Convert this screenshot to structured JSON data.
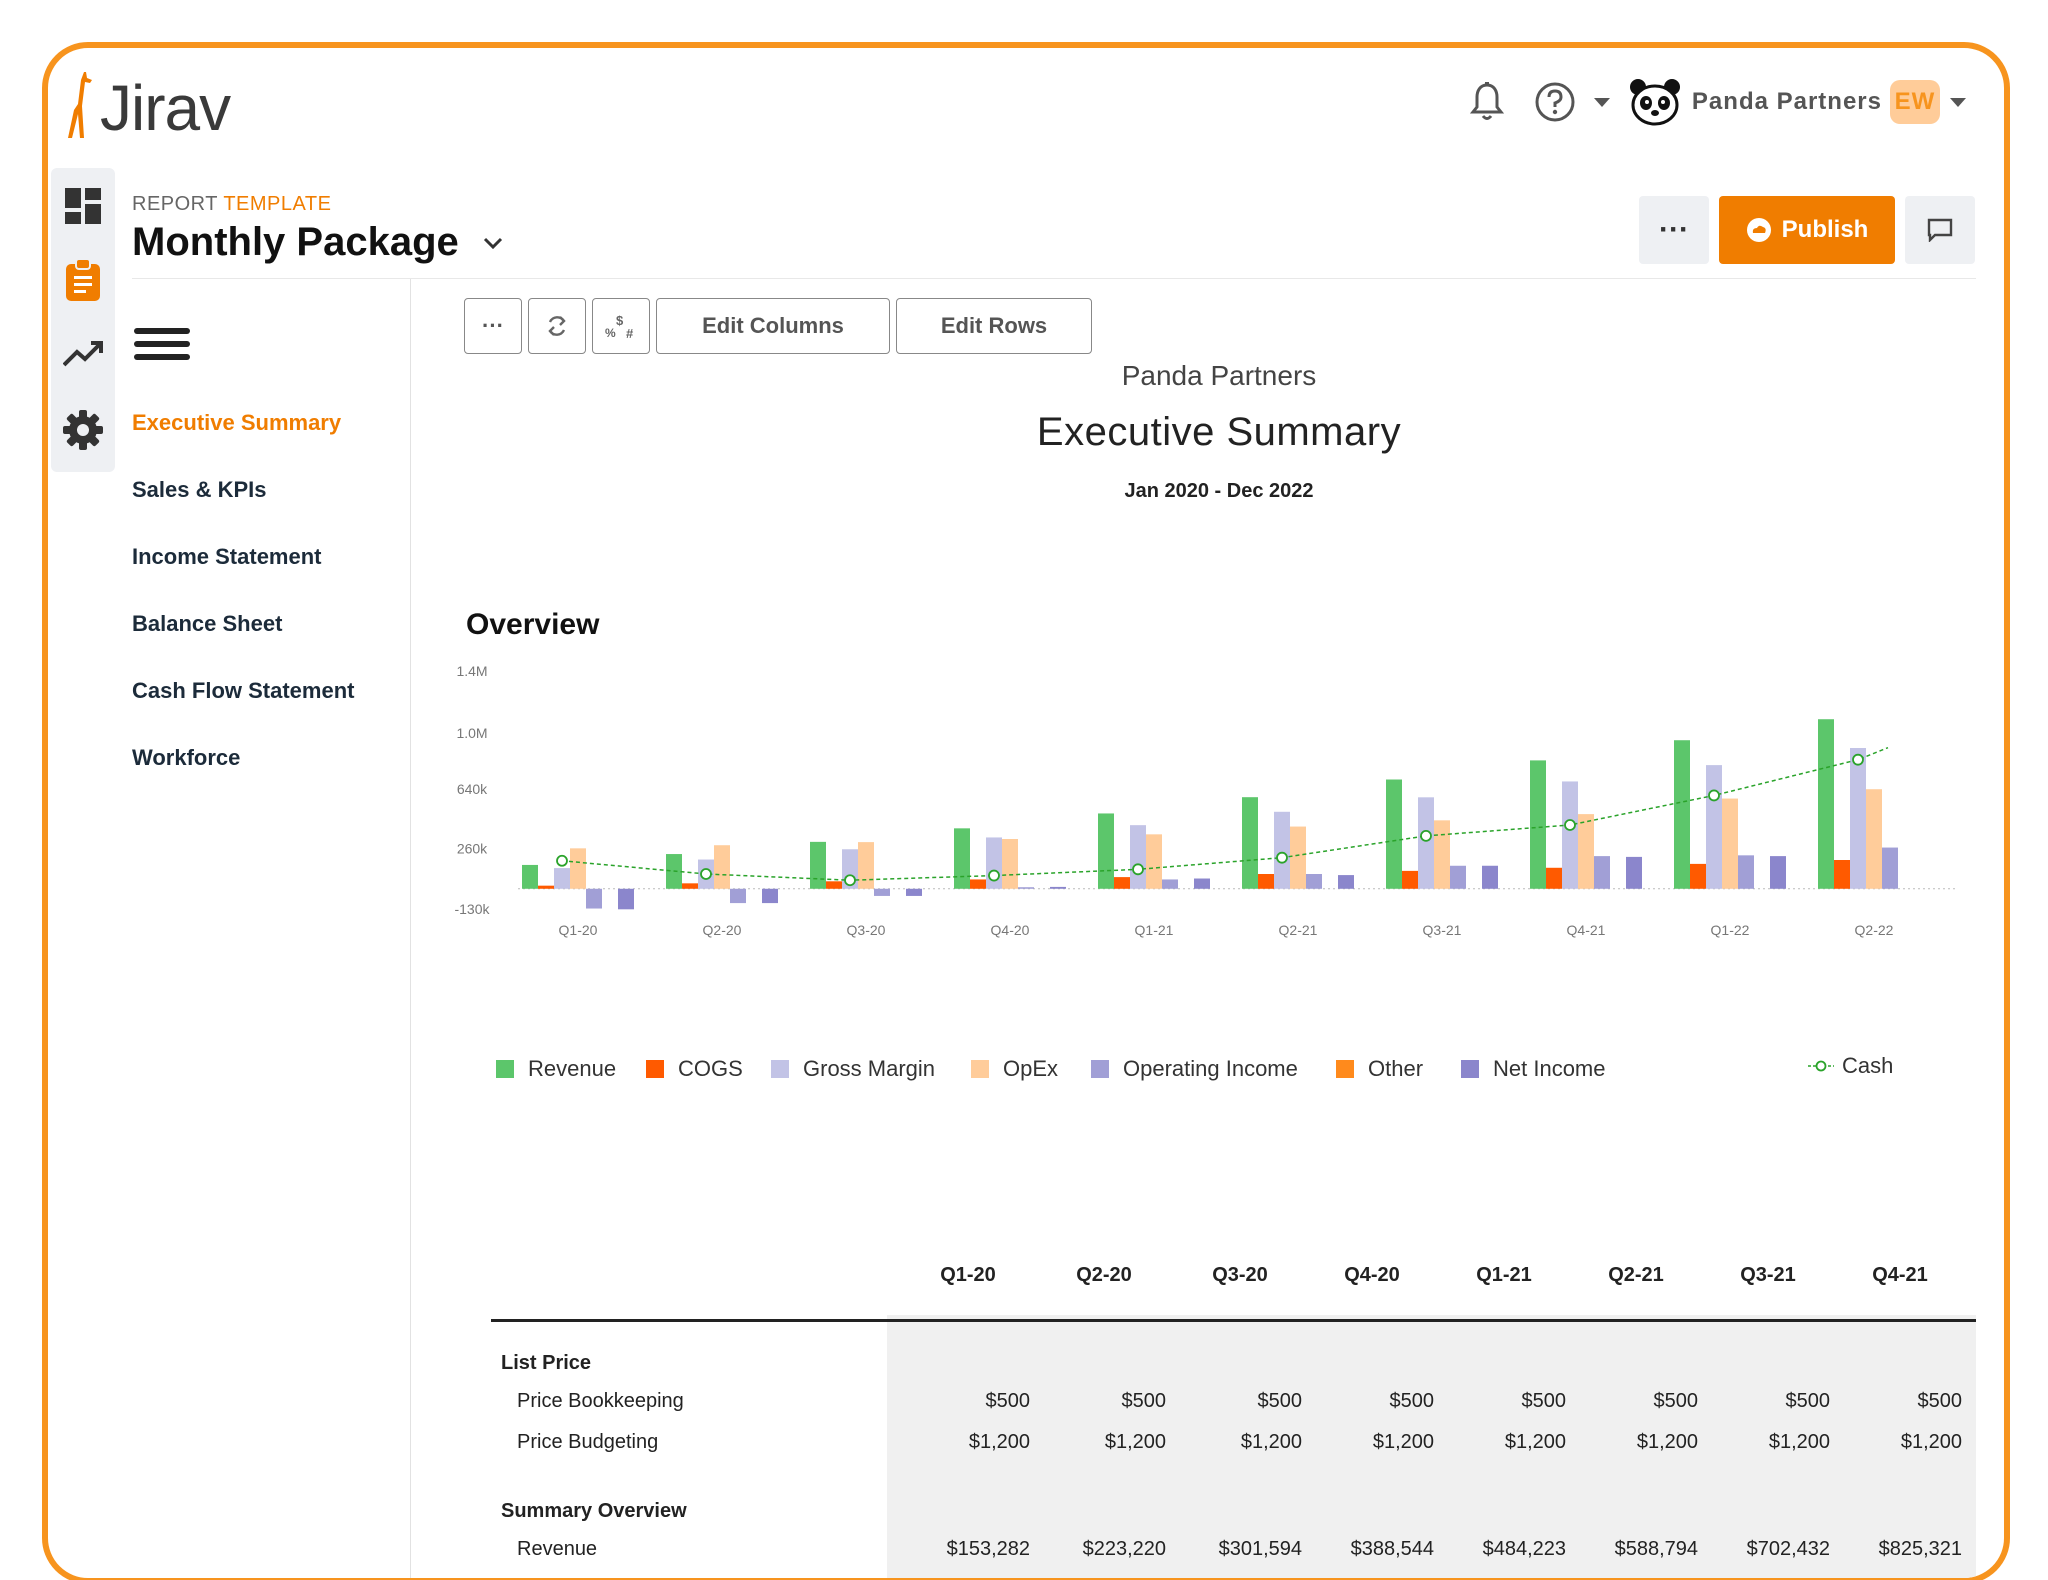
{
  "app": {
    "name": "Jirav"
  },
  "header": {
    "org_name": "Panda Partners",
    "user_initials": "EW",
    "notification_icon": "bell-icon",
    "help_icon": "help-circle-icon"
  },
  "rail": {
    "items": [
      {
        "icon": "dashboard-icon"
      },
      {
        "icon": "clipboard-icon",
        "active": true
      },
      {
        "icon": "trend-up-icon"
      },
      {
        "icon": "gear-icon"
      }
    ]
  },
  "report": {
    "label_prefix": "REPORT",
    "label_accent": "TEMPLATE",
    "title": "Monthly Package",
    "company": "Panda Partners",
    "name": "Executive Summary",
    "range": "Jan 2020 - Dec 2022"
  },
  "actions": {
    "more": "···",
    "publish": "Publish"
  },
  "toolbar": {
    "more": "···",
    "edit_columns": "Edit Columns",
    "edit_rows": "Edit Rows"
  },
  "nav": {
    "items": [
      {
        "label": "Executive Summary",
        "active": true
      },
      {
        "label": "Sales & KPIs"
      },
      {
        "label": "Income Statement"
      },
      {
        "label": "Balance Sheet"
      },
      {
        "label": "Cash Flow Statement"
      },
      {
        "label": "Workforce"
      }
    ]
  },
  "overview": {
    "title": "Overview"
  },
  "colors": {
    "accent": "#f07d00",
    "revenue": "#5cc66b",
    "cogs": "#ff5a00",
    "gross_margin": "#c2c3e6",
    "opex": "#ffcc9a",
    "operating_income": "#a19fd6",
    "other": "#ff8a1c",
    "net_income": "#8b86cc",
    "cash": "#2aa32a"
  },
  "chart_data": {
    "type": "bar",
    "categories": [
      "Q1-20",
      "Q2-20",
      "Q3-20",
      "Q4-20",
      "Q1-21",
      "Q2-21",
      "Q3-21",
      "Q4-21",
      "Q1-22",
      "Q2-22"
    ],
    "y_ticks": [
      "1.4M",
      "1.0M",
      "640k",
      "260k",
      "-130k"
    ],
    "y_tick_values": [
      1400000,
      1000000,
      640000,
      260000,
      -130000
    ],
    "ylim": [
      -130000,
      1400000
    ],
    "series": [
      {
        "name": "Revenue",
        "color": "#5cc66b",
        "values": [
          153282,
          223220,
          301594,
          388544,
          484223,
          588794,
          702432,
          825321,
          955000,
          1090000
        ]
      },
      {
        "name": "COGS",
        "color": "#ff5a00",
        "values": [
          20000,
          35000,
          48000,
          60000,
          75000,
          95000,
          115000,
          135000,
          160000,
          185000
        ]
      },
      {
        "name": "Gross Margin",
        "color": "#c2c3e6",
        "values": [
          133000,
          188000,
          254000,
          330000,
          409000,
          495000,
          588000,
          690000,
          795000,
          905000
        ]
      },
      {
        "name": "OpEx",
        "color": "#ffcc9a",
        "values": [
          260000,
          280000,
          300000,
          320000,
          350000,
          400000,
          440000,
          480000,
          580000,
          640000
        ]
      },
      {
        "name": "Operating Income",
        "color": "#a19fd6",
        "values": [
          -127000,
          -92000,
          -46000,
          10000,
          60000,
          95000,
          148000,
          210000,
          215000,
          265000
        ]
      },
      {
        "name": "Other",
        "color": "#ff8a1c",
        "values": [
          0,
          0,
          0,
          0,
          0,
          0,
          0,
          0,
          0,
          0
        ]
      },
      {
        "name": "Net Income",
        "color": "#8b86cc",
        "values": [
          -132000,
          -92000,
          -46000,
          12000,
          66000,
          88000,
          148000,
          205000,
          210000,
          0
        ]
      }
    ],
    "line_series": {
      "name": "Cash",
      "color": "#2aa32a",
      "values": [
        180000,
        95000,
        55000,
        85000,
        125000,
        200000,
        340000,
        410000,
        600000,
        830000
      ]
    },
    "legend": [
      "Revenue",
      "COGS",
      "Gross Margin",
      "OpEx",
      "Operating Income",
      "Other",
      "Net Income",
      "Cash"
    ],
    "legend_position": "bottom"
  },
  "table": {
    "columns": [
      "Q1-20",
      "Q2-20",
      "Q3-20",
      "Q4-20",
      "Q1-21",
      "Q2-21",
      "Q3-21",
      "Q4-21"
    ],
    "rows": [
      {
        "label": "List Price",
        "type": "group",
        "values": []
      },
      {
        "label": "Price Bookkeeping",
        "type": "sub",
        "values": [
          "$500",
          "$500",
          "$500",
          "$500",
          "$500",
          "$500",
          "$500",
          "$500"
        ]
      },
      {
        "label": "Price Budgeting",
        "type": "sub",
        "values": [
          "$1,200",
          "$1,200",
          "$1,200",
          "$1,200",
          "$1,200",
          "$1,200",
          "$1,200",
          "$1,200"
        ]
      },
      {
        "label": "Summary Overview",
        "type": "group",
        "values": []
      },
      {
        "label": "Revenue",
        "type": "sub",
        "values": [
          "$153,282",
          "$223,220",
          "$301,594",
          "$388,544",
          "$484,223",
          "$588,794",
          "$702,432",
          "$825,321"
        ]
      }
    ]
  }
}
